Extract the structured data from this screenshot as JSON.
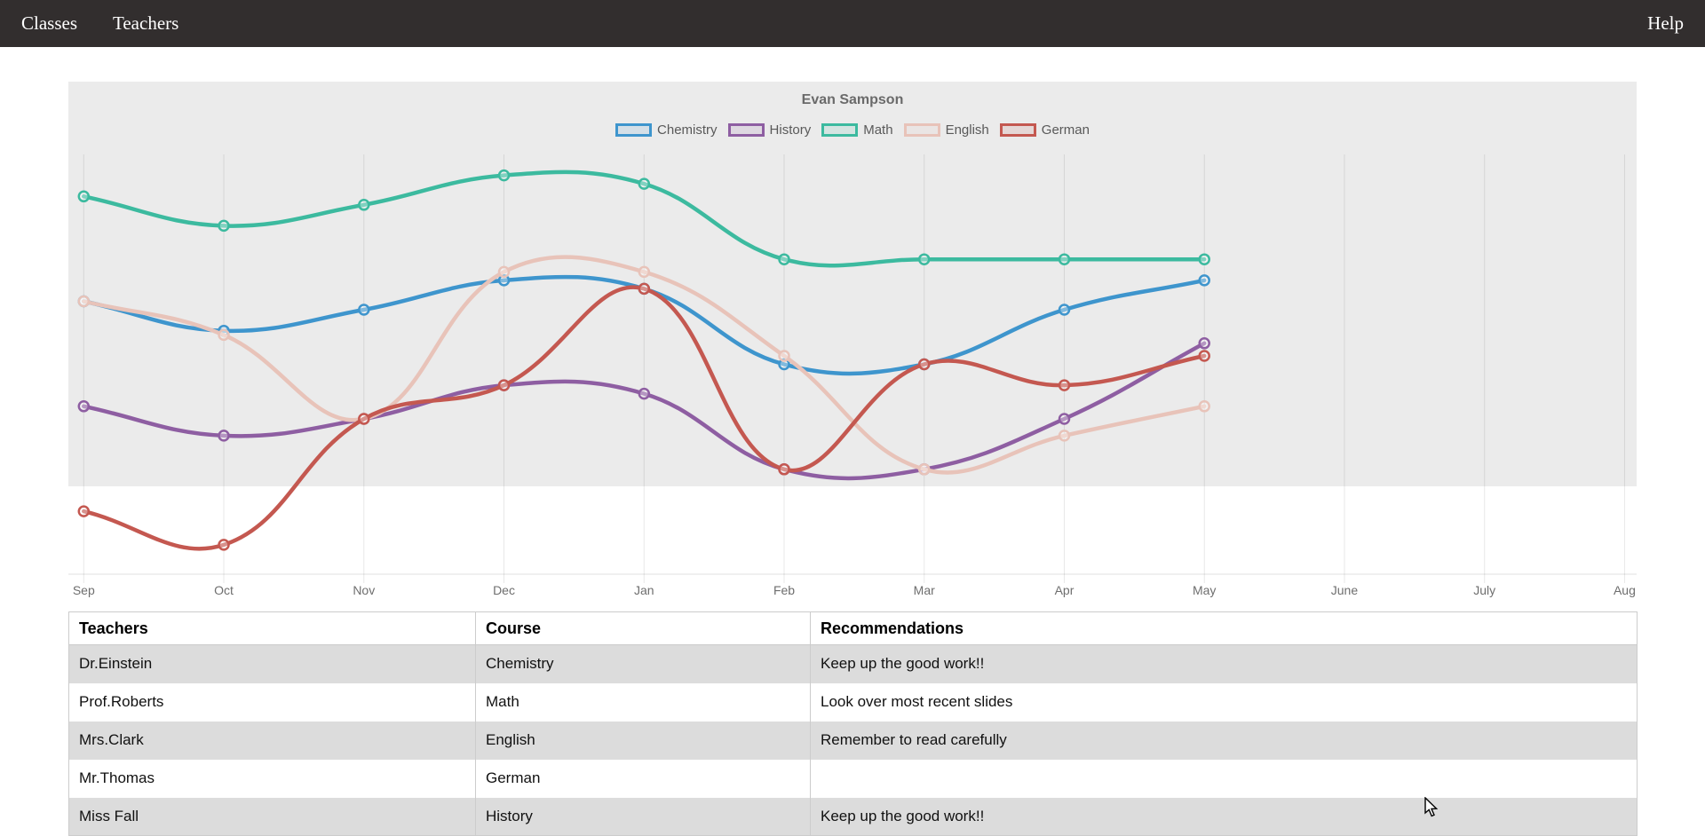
{
  "nav": {
    "items": [
      {
        "label": "Classes"
      },
      {
        "label": "Teachers"
      }
    ],
    "help_label": "Help"
  },
  "chart_data": {
    "type": "line",
    "title": "Evan Sampson",
    "x_categories": [
      "Sep",
      "Oct",
      "Nov",
      "Dec",
      "Jan",
      "Feb",
      "Mar",
      "Apr",
      "May",
      "June",
      "July",
      "Aug"
    ],
    "series": [
      {
        "name": "Chemistry",
        "color": "#3e95cd",
        "values": [
          65,
          58,
          63,
          70,
          68,
          50,
          50,
          63,
          70
        ]
      },
      {
        "name": "History",
        "color": "#8e5ea2",
        "values": [
          40,
          33,
          37,
          45,
          43,
          25,
          25,
          37,
          55
        ]
      },
      {
        "name": "Math",
        "color": "#3cba9f",
        "values": [
          90,
          83,
          88,
          95,
          93,
          75,
          75,
          75,
          75
        ]
      },
      {
        "name": "English",
        "color": "#e8c3b9",
        "values": [
          65,
          57,
          37,
          72,
          72,
          52,
          25,
          33,
          40
        ]
      },
      {
        "name": "German",
        "color": "#c45850",
        "values": [
          15,
          7,
          37,
          45,
          68,
          25,
          50,
          45,
          52
        ]
      }
    ],
    "ylim": [
      0,
      100
    ],
    "y_axis_labels_visible": false,
    "grid": "vertical-only",
    "legend_position": "top",
    "curve": "bezier-tension-0.4",
    "plot_background": "#ebebeb"
  },
  "table": {
    "headers": [
      "Teachers",
      "Course",
      "Recommendations"
    ],
    "rows": [
      {
        "teacher": "Dr.Einstein",
        "course": "Chemistry",
        "recommendation": "Keep up the good work!!"
      },
      {
        "teacher": "Prof.Roberts",
        "course": "Math",
        "recommendation": "Look over most recent slides"
      },
      {
        "teacher": "Mrs.Clark",
        "course": "English",
        "recommendation": "Remember to read carefully"
      },
      {
        "teacher": "Mr.Thomas",
        "course": "German",
        "recommendation": ""
      },
      {
        "teacher": "Miss Fall",
        "course": "History",
        "recommendation": "Keep up the good work!!"
      }
    ]
  }
}
